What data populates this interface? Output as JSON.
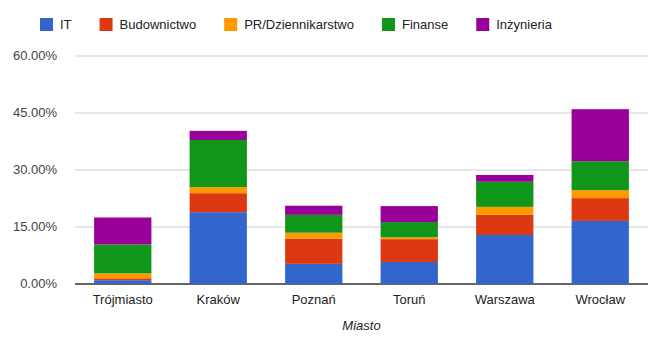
{
  "chart_data": {
    "type": "bar",
    "stacked": true,
    "grid": true,
    "legend": "top",
    "x_label": "Miasto",
    "categories": [
      "Trójmiasto",
      "Kraków",
      "Poznań",
      "Toruń",
      "Warszawa",
      "Wrocław"
    ],
    "ylim": [
      0,
      60
    ],
    "yticks": [
      {
        "value": 0,
        "label": "0.00%"
      },
      {
        "value": 15,
        "label": "15.00%"
      },
      {
        "value": 30,
        "label": "30.00%"
      },
      {
        "value": 45,
        "label": "45.00%"
      },
      {
        "value": 60,
        "label": "60.00%"
      }
    ],
    "series": [
      {
        "name": "IT",
        "color": "#3366cc",
        "values": [
          1.0,
          18.9,
          5.3,
          5.8,
          12.9,
          16.6
        ]
      },
      {
        "name": "Budownictwo",
        "color": "#dc3912",
        "values": [
          0.5,
          5.0,
          6.6,
          6.0,
          5.3,
          6.0
        ]
      },
      {
        "name": "PR/Dziennikarstwo",
        "color": "#ff9900",
        "values": [
          1.3,
          1.6,
          1.6,
          0.5,
          2.1,
          2.1
        ]
      },
      {
        "name": "Finanse",
        "color": "#109618",
        "values": [
          7.6,
          12.4,
          4.7,
          4.0,
          6.6,
          7.6
        ]
      },
      {
        "name": "Inżynieria",
        "color": "#990099",
        "values": [
          7.1,
          2.4,
          2.4,
          4.2,
          1.8,
          13.7
        ]
      }
    ]
  }
}
